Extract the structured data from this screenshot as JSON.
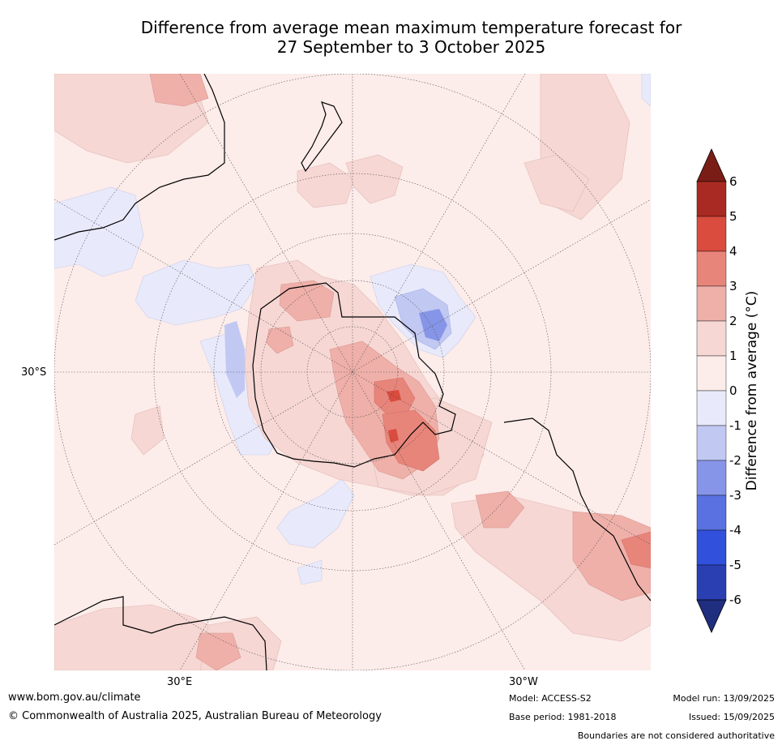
{
  "title": {
    "line1": "Difference from average mean maximum temperature forecast for",
    "line2": "27 September to 3 October 2025"
  },
  "map": {
    "projection": "south polar stereographic",
    "lat_label": "30°S",
    "lon_labels": [
      "30°E",
      "30°W"
    ]
  },
  "colorbar": {
    "title": "Difference from average (°C)",
    "ticks": [
      "6",
      "5",
      "4",
      "3",
      "2",
      "1",
      "0",
      "-1",
      "-2",
      "-3",
      "-4",
      "-5",
      "-6"
    ],
    "colors": [
      "#7b1d17",
      "#a92a22",
      "#d94c3e",
      "#e8857b",
      "#efb0a9",
      "#f6d7d4",
      "#fcecea",
      "#e8eafb",
      "#c1c8f2",
      "#8695e8",
      "#5a71e1",
      "#3150db",
      "#2a3fb1",
      "#1f2e7f"
    ]
  },
  "footer": {
    "url": "www.bom.gov.au/climate",
    "copyright": "© Commonwealth of Australia 2025, Australian Bureau of Meteorology",
    "model": "Model: ACCESS-S2",
    "base_period": "Base period: 1981-2018",
    "model_run": "Model run: 13/09/2025",
    "issued": "Issued: 15/09/2025",
    "disclaimer": "Boundaries are not considered authoritative"
  }
}
